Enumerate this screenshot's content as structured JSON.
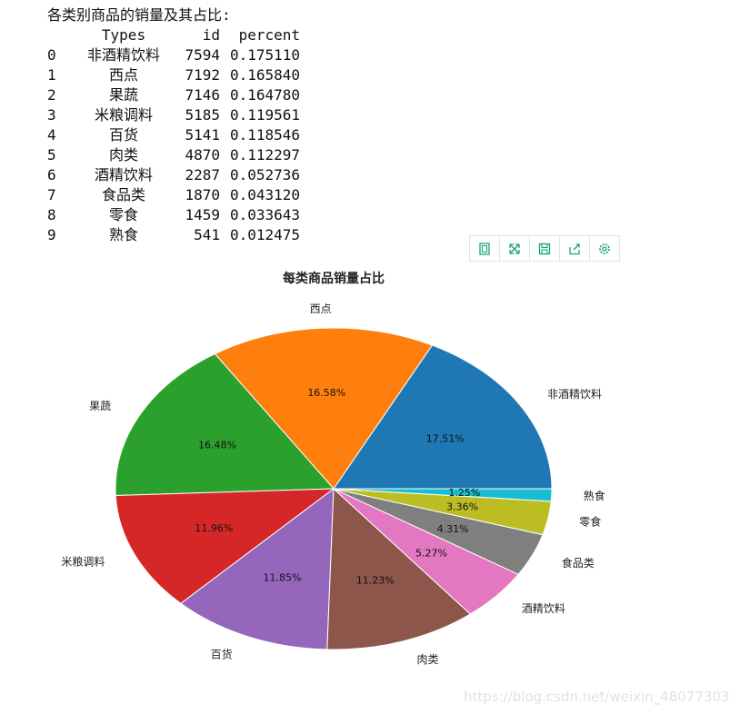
{
  "output": {
    "caption": "各类别商品的销量及其占比:",
    "columns": [
      "Types",
      "id",
      "percent"
    ],
    "rows": [
      {
        "index": "0",
        "type": "非酒精饮料",
        "id": "7594",
        "percent": "0.175110"
      },
      {
        "index": "1",
        "type": "西点",
        "id": "7192",
        "percent": "0.165840"
      },
      {
        "index": "2",
        "type": "果蔬",
        "id": "7146",
        "percent": "0.164780"
      },
      {
        "index": "3",
        "type": "米粮调料",
        "id": "5185",
        "percent": "0.119561"
      },
      {
        "index": "4",
        "type": "百货",
        "id": "5141",
        "percent": "0.118546"
      },
      {
        "index": "5",
        "type": "肉类",
        "id": "4870",
        "percent": "0.112297"
      },
      {
        "index": "6",
        "type": "酒精饮料",
        "id": "2287",
        "percent": "0.052736"
      },
      {
        "index": "7",
        "type": "食品类",
        "id": "1870",
        "percent": "0.043120"
      },
      {
        "index": "8",
        "type": "零食",
        "id": "1459",
        "percent": "0.033643"
      },
      {
        "index": "9",
        "type": "熟食",
        "id": "541",
        "percent": "0.012475"
      }
    ]
  },
  "toolbar": {
    "icons": [
      "data-view-icon",
      "restore-icon",
      "save-image-icon",
      "export-icon",
      "settings-icon"
    ],
    "color": "#19a37a"
  },
  "chart_data": {
    "type": "pie",
    "title": "每类商品销量占比",
    "categories": [
      "非酒精饮料",
      "西点",
      "果蔬",
      "米粮调料",
      "百货",
      "肉类",
      "酒精饮料",
      "食品类",
      "零食",
      "熟食"
    ],
    "values": [
      7594,
      7192,
      7146,
      5185,
      5141,
      4870,
      2287,
      1870,
      1459,
      541
    ],
    "percent_labels": [
      "17.51%",
      "16.58%",
      "16.48%",
      "11.96%",
      "11.85%",
      "11.23%",
      "5.27%",
      "4.31%",
      "3.36%",
      "1.25%"
    ],
    "colors": [
      "#1f77b4",
      "#ff7f0e",
      "#2ca02c",
      "#d62728",
      "#9467bd",
      "#8c564b",
      "#e377c2",
      "#7f7f7f",
      "#bcbd22",
      "#17becf"
    ],
    "start_angle_deg": 0,
    "direction": "counterclockwise"
  },
  "watermark": "https://blog.csdn.net/weixin_48077303"
}
